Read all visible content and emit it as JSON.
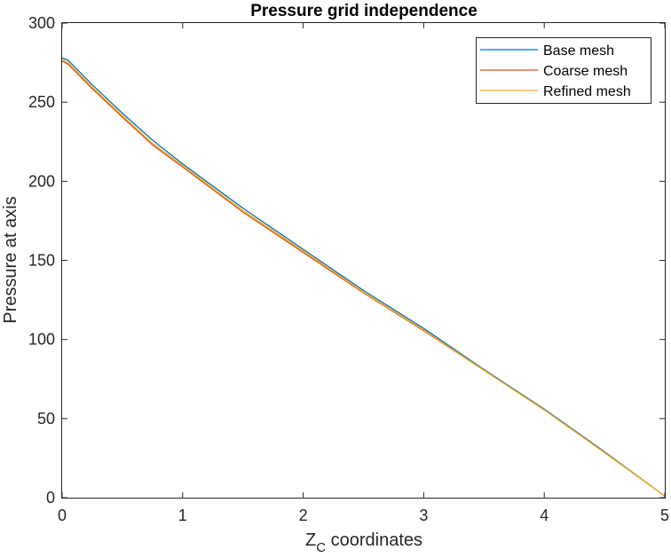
{
  "chart_data": {
    "type": "line",
    "title": "Pressure grid independence",
    "xlabel": {
      "main": "Z",
      "subscript": "C",
      "suffix": " coordinates"
    },
    "ylabel": "Pressure at axis",
    "xlim": [
      0,
      5
    ],
    "ylim": [
      0,
      300
    ],
    "xticks": [
      "0",
      "1",
      "2",
      "3",
      "4",
      "5"
    ],
    "yticks": [
      "0",
      "50",
      "100",
      "150",
      "200",
      "250",
      "300"
    ],
    "grid": false,
    "legend_position": "top-right",
    "series": [
      {
        "name": "Base mesh",
        "color": "#0072BD",
        "x": [
          0,
          0.05,
          0.25,
          0.5,
          0.75,
          1,
          1.5,
          2,
          2.5,
          3,
          3.5,
          4,
          4.5,
          5
        ],
        "y": [
          278,
          276.5,
          261,
          243,
          226,
          211,
          183,
          157,
          131,
          107,
          81,
          56,
          29,
          1
        ]
      },
      {
        "name": "Coarse mesh",
        "color": "#D95319",
        "x": [
          0,
          0.05,
          0.25,
          0.5,
          0.75,
          1,
          1.5,
          2,
          2.5,
          3,
          3.5,
          4,
          4.5,
          5
        ],
        "y": [
          276,
          274,
          258.5,
          240.5,
          223,
          209,
          180.5,
          155,
          129.5,
          105.5,
          80.5,
          55.5,
          28.5,
          1
        ]
      },
      {
        "name": "Refined mesh",
        "color": "#EDB120",
        "x": [
          0,
          0.05,
          0.25,
          0.5,
          0.75,
          1,
          1.5,
          2,
          2.5,
          3,
          3.5,
          4,
          4.5,
          5
        ],
        "y": [
          277,
          275,
          259.5,
          241.5,
          224,
          210,
          181.5,
          156,
          130,
          106,
          80.5,
          55.5,
          28.5,
          1
        ]
      }
    ]
  }
}
